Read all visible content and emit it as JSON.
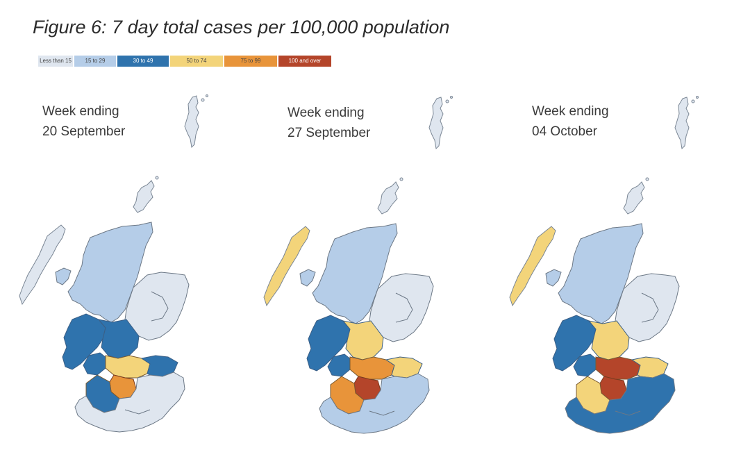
{
  "figure": {
    "title": "Figure 6: 7 day total cases per 100,000 population"
  },
  "legend": [
    {
      "label": "Less than 15",
      "color": "#dfe6ef",
      "dark": false
    },
    {
      "label": "15 to 29",
      "color": "#b5cde8",
      "dark": false
    },
    {
      "label": "30 to 49",
      "color": "#2f73ad",
      "dark": true
    },
    {
      "label": "50 to 74",
      "color": "#f3d47a",
      "dark": false
    },
    {
      "label": "75 to 99",
      "color": "#e8943a",
      "dark": false
    },
    {
      "label": "100 and over",
      "color": "#b4452a",
      "dark": true
    }
  ],
  "maps": [
    {
      "line1": "Week ending",
      "line2": "20 September",
      "colors": {
        "highlands": "#b5cde8",
        "aberdeen": "#dfe6ef",
        "borders": "#dfe6ef",
        "central": "#2f73ad",
        "west": "#2f73ad",
        "core": "#f3d47a",
        "hot": "#e8943a",
        "islands": "#dfe6ef",
        "orkney": "#dfe6ef",
        "shetland": "#dfe6ef",
        "glasgow": "#2f73ad",
        "south_core": "#2f73ad"
      }
    },
    {
      "line1": "Week ending",
      "line2": "27 September",
      "colors": {
        "highlands": "#b5cde8",
        "aberdeen": "#dfe6ef",
        "borders": "#b5cde8",
        "central": "#f3d47a",
        "west": "#2f73ad",
        "core": "#e8943a",
        "hot": "#b4452a",
        "islands": "#f3d47a",
        "orkney": "#dfe6ef",
        "shetland": "#dfe6ef",
        "glasgow": "#2f73ad",
        "south_core": "#e8943a"
      }
    },
    {
      "line1": "Week ending",
      "line2": "04 October",
      "colors": {
        "highlands": "#b5cde8",
        "aberdeen": "#dfe6ef",
        "borders": "#2f73ad",
        "central": "#f3d47a",
        "west": "#2f73ad",
        "core": "#b4452a",
        "hot": "#b4452a",
        "islands": "#f3d47a",
        "orkney": "#dfe6ef",
        "shetland": "#dfe6ef",
        "glasgow": "#2f73ad",
        "south_core": "#f3d47a"
      }
    }
  ]
}
